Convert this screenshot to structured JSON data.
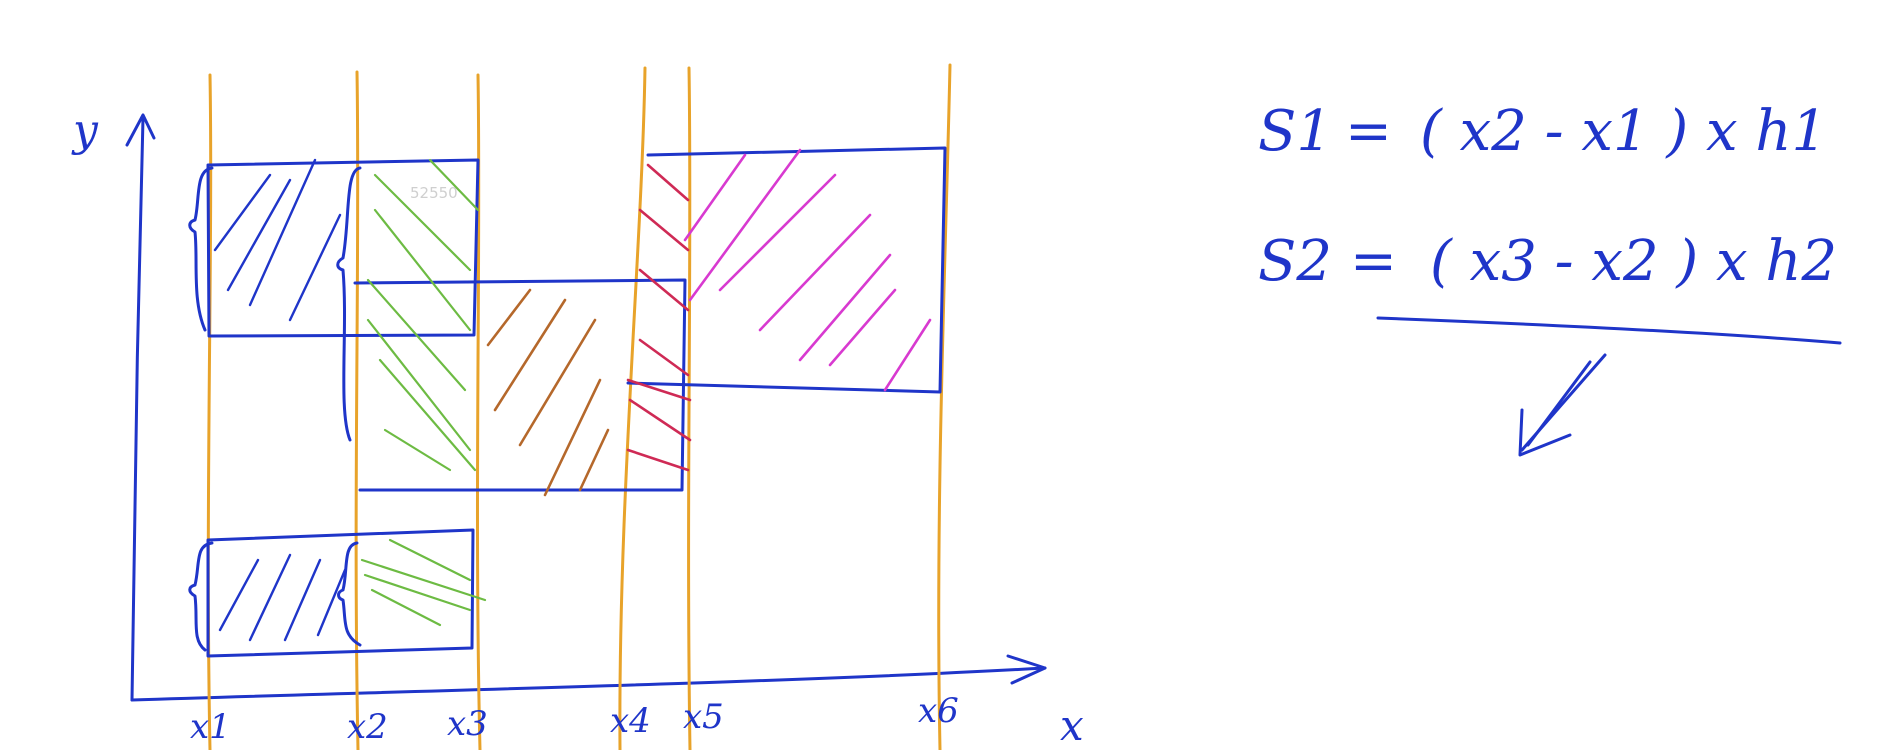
{
  "axes": {
    "y_label": "y",
    "x_label": "x"
  },
  "ticks": [
    "x1",
    "x2",
    "x3",
    "x4",
    "x5",
    "x6"
  ],
  "equations": {
    "s1": {
      "lhs": "S1",
      "eq": "=",
      "rhs": "( x2 - x1 ) x h1"
    },
    "s2": {
      "lhs": "S2",
      "eq": "=",
      "rhs": "( x3 - x2 ) x h2"
    }
  },
  "watermark": "52550",
  "colors": {
    "ink_blue": "#1f35c9",
    "orange_lines": "#e8a32a",
    "green_hatch": "#6dbb43",
    "brown_hatch": "#b5682b",
    "red_hatch": "#cf2a55",
    "magenta_hatch": "#d83ad0"
  }
}
